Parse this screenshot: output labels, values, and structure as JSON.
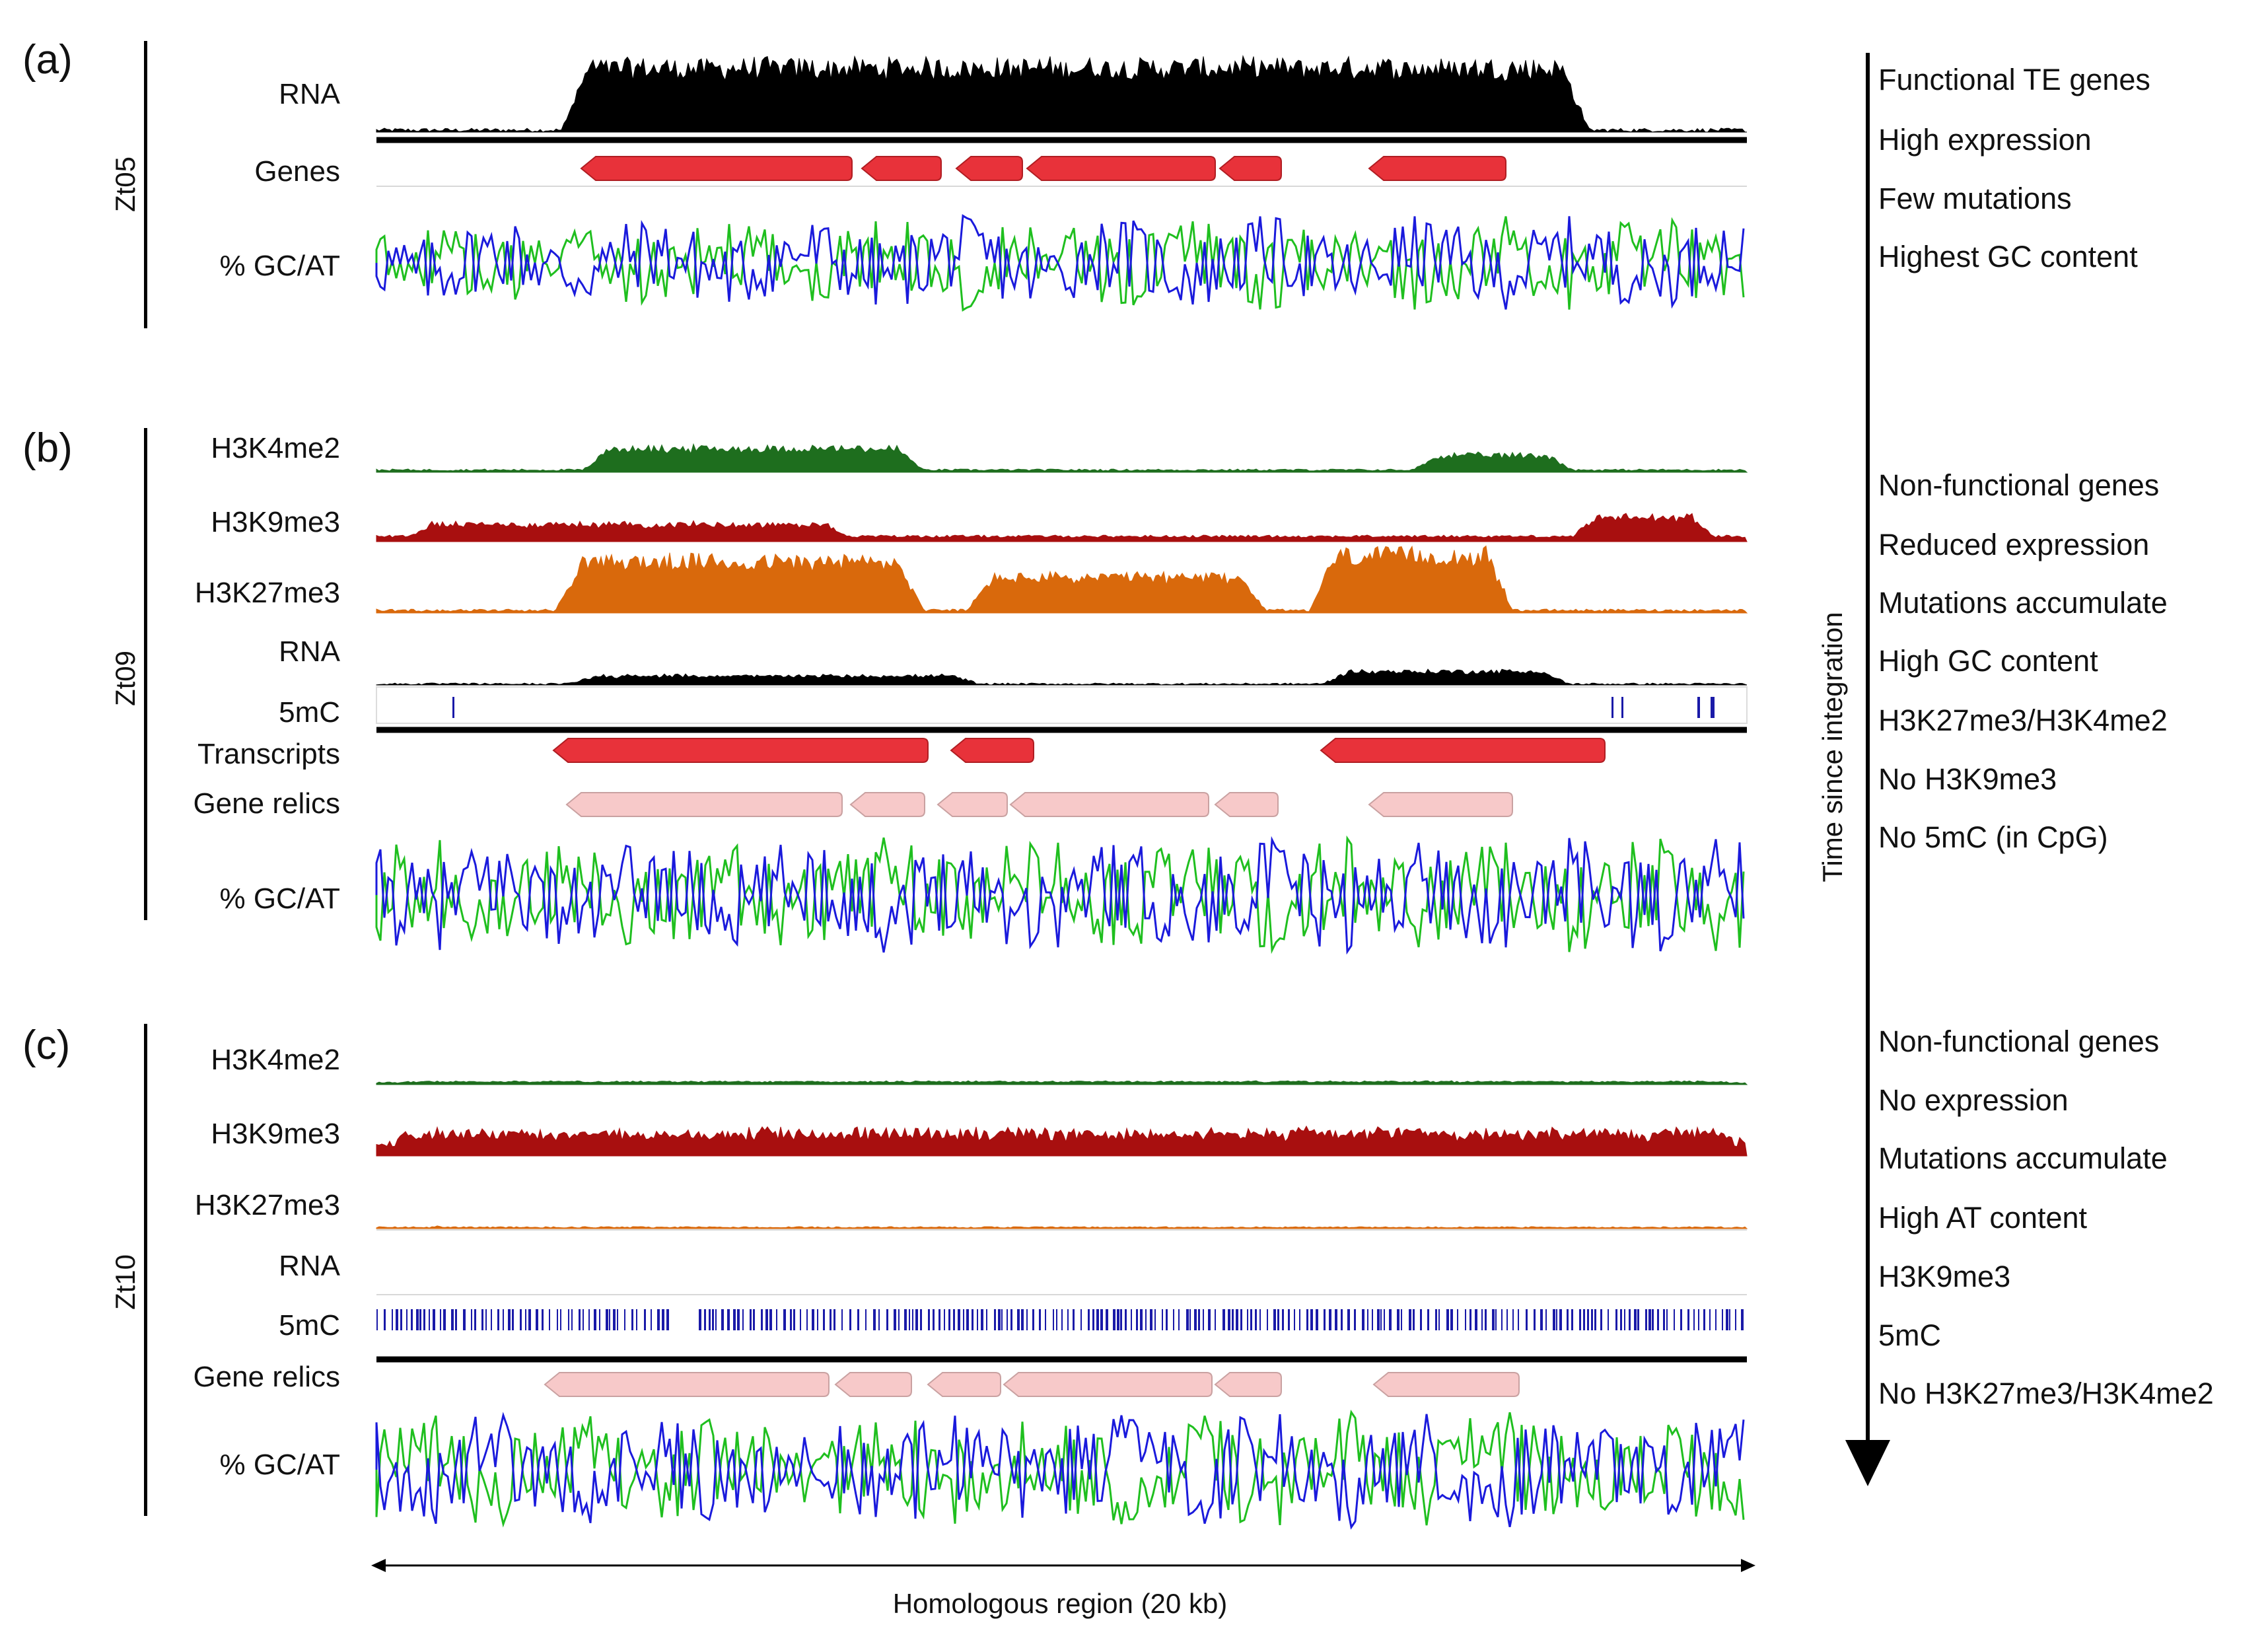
{
  "colors": {
    "rna": "#000000",
    "gene": "#e8323a",
    "gene_relic": "#f7c9c9",
    "gc": "#1a1adc",
    "at": "#1fbf1f",
    "h3k4me2": "#1e6e1e",
    "h3k9me3": "#a80f0f",
    "h3k27me3": "#d9690c",
    "mc5": "#1a1aa8"
  },
  "panels": [
    {
      "letter": "(a)",
      "strain": "Zt05",
      "tracks": [
        "RNA",
        "Genes",
        "% GC/AT"
      ],
      "notes": [
        "Functional TE genes",
        "High expression",
        "Few mutations",
        "Highest GC content"
      ]
    },
    {
      "letter": "(b)",
      "strain": "Zt09",
      "tracks": [
        "H3K4me2",
        "H3K9me3",
        "H3K27me3",
        "RNA",
        "5mC",
        "Transcripts",
        "Gene relics",
        "% GC/AT"
      ],
      "notes": [
        "Non-functional genes",
        "Reduced expression",
        "Mutations accumulate",
        "High GC content",
        "H3K27me3/H3K4me2",
        "No H3K9me3",
        "No 5mC (in CpG)"
      ]
    },
    {
      "letter": "(c)",
      "strain": "Zt10",
      "tracks": [
        "H3K4me2",
        "H3K9me3",
        "H3K27me3",
        "RNA",
        "5mC",
        "Gene relics",
        "% GC/AT"
      ],
      "notes": [
        "Non-functional genes",
        "No expression",
        "Mutations accumulate",
        "High AT content",
        "H3K9me3",
        "5mC",
        "No H3K27me3/H3K4me2"
      ]
    }
  ],
  "time_axis": {
    "label": "Time since integration"
  },
  "region_axis": {
    "label": "Homologous region (20 kb)"
  }
}
